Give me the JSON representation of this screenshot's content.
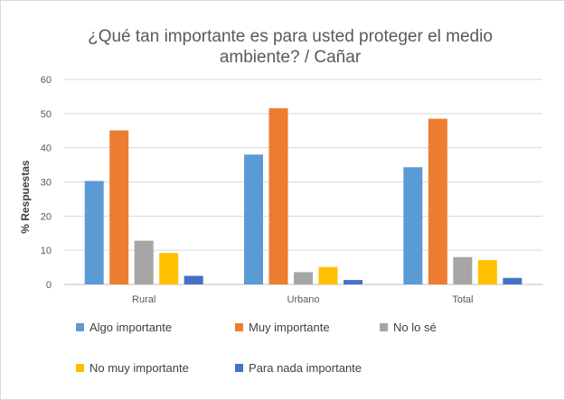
{
  "chart_data": {
    "type": "bar",
    "title": "¿Qué tan importante es para usted proteger el medio ambiente? / Cañar",
    "title_lines": [
      "¿Qué tan importante es para usted proteger el medio",
      "ambiente? / Cañar"
    ],
    "ylabel": "% Respuestas",
    "xlabel": "",
    "ylim": [
      0,
      60
    ],
    "yticks": [
      0,
      10,
      20,
      30,
      40,
      50,
      60
    ],
    "grid": true,
    "legend_position": "bottom",
    "categories": [
      "Rural",
      "Urbano",
      "Total"
    ],
    "series": [
      {
        "name": "Algo importante",
        "color": "#5b9bd5",
        "values": [
          30.3,
          38.0,
          34.3
        ]
      },
      {
        "name": "Muy importante",
        "color": "#ed7d31",
        "values": [
          45.1,
          51.6,
          48.5
        ]
      },
      {
        "name": "No lo sé",
        "color": "#a5a5a5",
        "values": [
          12.8,
          3.6,
          8.0
        ]
      },
      {
        "name": "No muy importante",
        "color": "#ffc000",
        "values": [
          9.2,
          5.1,
          7.1
        ]
      },
      {
        "name": "Para nada importante",
        "color": "#4472c4",
        "values": [
          2.5,
          1.3,
          1.9
        ]
      }
    ]
  }
}
